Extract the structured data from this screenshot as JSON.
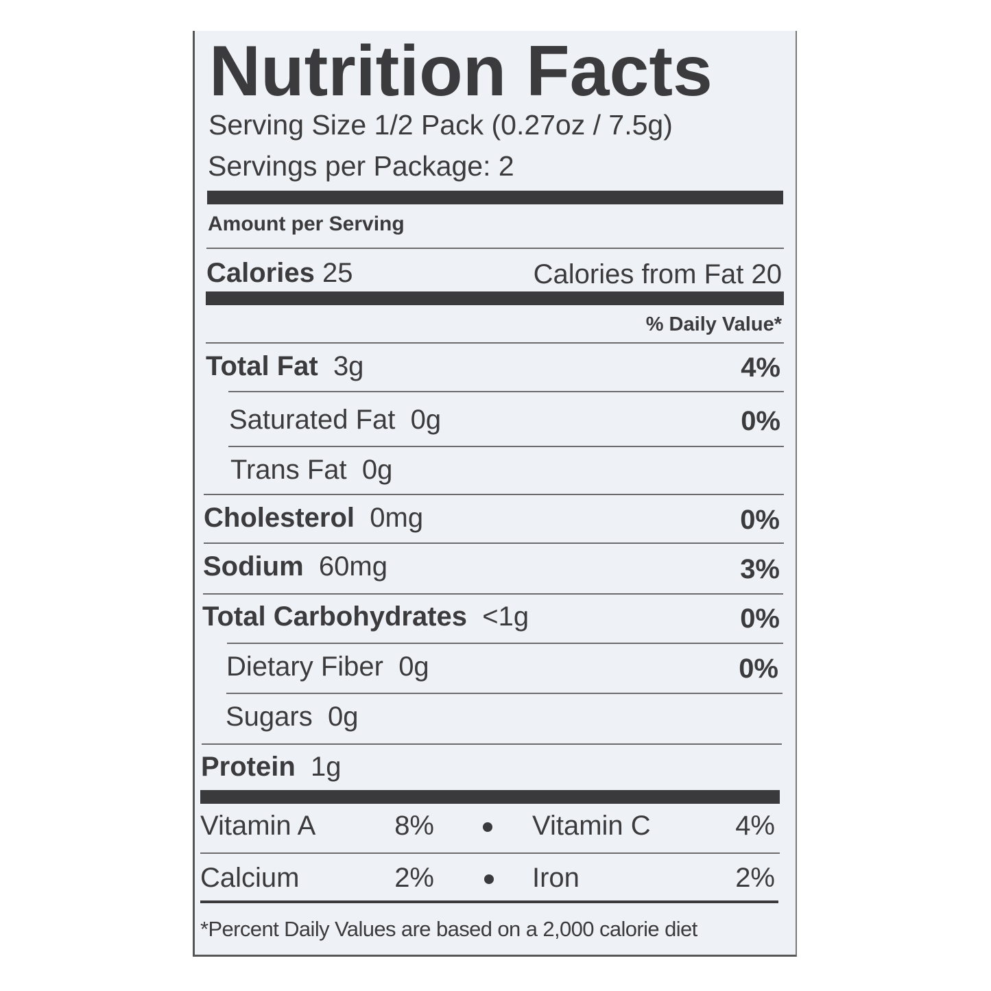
{
  "title": "Nutrition Facts",
  "serving_size": "Serving Size 1/2 Pack (0.27oz / 7.5g)",
  "servings_per_package": "Servings per Package: 2",
  "amount_per_serving": "Amount per Serving",
  "calories": {
    "label": "Calories",
    "value": "25",
    "from_fat": "Calories from Fat 20"
  },
  "daily_value_header": "% Daily Value*",
  "nutrients": [
    {
      "label": "Total Fat",
      "amount": "3g",
      "dv": "4%"
    },
    {
      "label": "Saturated Fat",
      "amount": "0g",
      "dv": "0%"
    },
    {
      "label": "Trans Fat",
      "amount": "0g",
      "dv": ""
    },
    {
      "label": "Cholesterol",
      "amount": "0mg",
      "dv": "0%"
    },
    {
      "label": "Sodium",
      "amount": "60mg",
      "dv": "3%"
    },
    {
      "label": "Total Carbohydrates",
      "amount": "<1g",
      "dv": "0%"
    },
    {
      "label": "Dietary Fiber",
      "amount": "0g",
      "dv": "0%"
    },
    {
      "label": "Sugars",
      "amount": "0g",
      "dv": ""
    },
    {
      "label": "Protein",
      "amount": "1g",
      "dv": ""
    }
  ],
  "vitamins": [
    {
      "label": "Vitamin A",
      "dv": "8%"
    },
    {
      "label": "Vitamin C",
      "dv": "4%"
    },
    {
      "label": "Calcium",
      "dv": "2%"
    },
    {
      "label": "Iron",
      "dv": "2%"
    }
  ],
  "footnote": "*Percent Daily Values are based on a 2,000 calorie diet"
}
